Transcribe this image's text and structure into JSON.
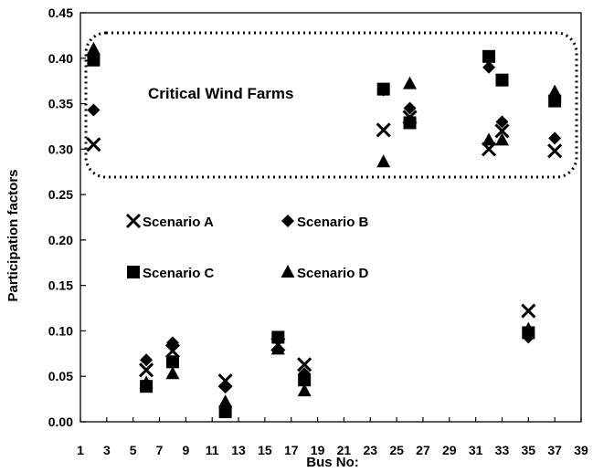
{
  "chart_data": {
    "type": "scatter",
    "title": "",
    "xlabel": "Bus No:",
    "ylabel": "Participation factors",
    "xlim": [
      1,
      39
    ],
    "ylim": [
      0,
      0.45
    ],
    "x_ticks": [
      "1",
      "3",
      "5",
      "7",
      "9",
      "11",
      "13",
      "15",
      "17",
      "19",
      "21",
      "23",
      "25",
      "27",
      "29",
      "31",
      "33",
      "35",
      "37",
      "39"
    ],
    "y_ticks": [
      "0.00",
      "0.05",
      "0.10",
      "0.15",
      "0.20",
      "0.25",
      "0.30",
      "0.35",
      "0.40",
      "0.45"
    ],
    "grid": false,
    "annotation": "Critical Wind Farms",
    "series": [
      {
        "name": "Scenario A",
        "marker": "x",
        "points": [
          [
            2,
            0.305
          ],
          [
            6,
            0.057
          ],
          [
            8,
            0.078
          ],
          [
            12,
            0.045
          ],
          [
            16,
            0.085
          ],
          [
            18,
            0.063
          ],
          [
            24,
            0.321
          ],
          [
            26,
            0.335
          ],
          [
            32,
            0.3
          ],
          [
            33,
            0.32
          ],
          [
            35,
            0.122
          ],
          [
            37,
            0.298
          ]
        ]
      },
      {
        "name": "Scenario B",
        "marker": "diamond",
        "points": [
          [
            2,
            0.343
          ],
          [
            6,
            0.068
          ],
          [
            8,
            0.087
          ],
          [
            12,
            0.038
          ],
          [
            16,
            0.09
          ],
          [
            18,
            0.053
          ],
          [
            24,
            0.365
          ],
          [
            26,
            0.345
          ],
          [
            32,
            0.39
          ],
          [
            33,
            0.33
          ],
          [
            35,
            0.093
          ],
          [
            37,
            0.312
          ]
        ]
      },
      {
        "name": "Scenario C",
        "marker": "square",
        "points": [
          [
            2,
            0.398
          ],
          [
            6,
            0.039
          ],
          [
            8,
            0.066
          ],
          [
            12,
            0.011
          ],
          [
            16,
            0.093
          ],
          [
            18,
            0.046
          ],
          [
            24,
            0.366
          ],
          [
            26,
            0.329
          ],
          [
            32,
            0.402
          ],
          [
            33,
            0.376
          ],
          [
            35,
            0.098
          ],
          [
            37,
            0.353
          ]
        ]
      },
      {
        "name": "Scenario D",
        "marker": "triangle",
        "points": [
          [
            2,
            0.41
          ],
          [
            6,
            0.043
          ],
          [
            8,
            0.053
          ],
          [
            12,
            0.022
          ],
          [
            16,
            0.08
          ],
          [
            18,
            0.034
          ],
          [
            24,
            0.286
          ],
          [
            26,
            0.372
          ],
          [
            32,
            0.31
          ],
          [
            33,
            0.31
          ],
          [
            35,
            0.102
          ],
          [
            37,
            0.363
          ]
        ]
      }
    ]
  }
}
